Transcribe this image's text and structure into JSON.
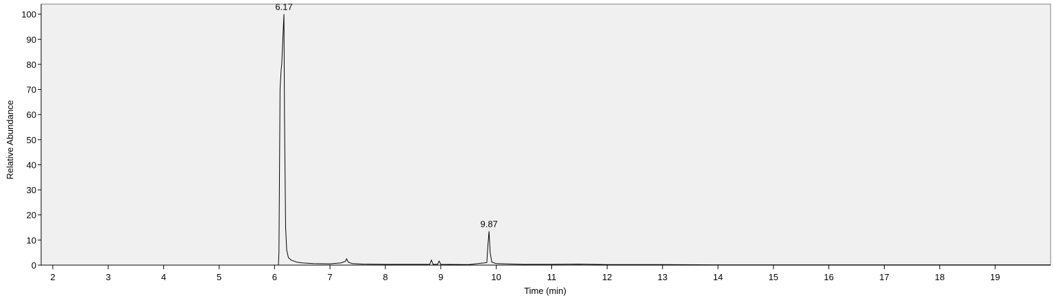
{
  "chart_data": {
    "type": "line",
    "xlabel": "Time (min)",
    "ylabel": "Relative Abundance",
    "xlim": [
      1.79,
      20.0
    ],
    "ylim": [
      0,
      104
    ],
    "xticks": [
      2,
      3,
      4,
      5,
      6,
      7,
      8,
      9,
      10,
      11,
      12,
      13,
      14,
      15,
      16,
      17,
      18,
      19
    ],
    "yticks": [
      0,
      10,
      20,
      30,
      40,
      50,
      60,
      70,
      80,
      90,
      100
    ],
    "x": [
      1.79,
      6.0,
      6.07,
      6.08,
      6.1,
      6.12,
      6.13,
      6.15,
      6.17,
      6.18,
      6.2,
      6.22,
      6.25,
      6.3,
      6.4,
      6.5,
      6.7,
      7.0,
      7.2,
      7.28,
      7.3,
      7.33,
      7.4,
      7.6,
      8.0,
      8.5,
      8.8,
      8.83,
      8.86,
      8.94,
      8.97,
      9.0,
      9.5,
      9.83,
      9.85,
      9.87,
      9.89,
      9.92,
      10.0,
      10.5,
      11.0,
      11.5,
      12.0,
      13.0,
      14.0,
      16.0,
      18.0,
      20.0
    ],
    "series": [
      {
        "color": "#000000",
        "values": [
          0,
          0,
          0,
          5,
          70,
          78,
          80,
          90,
          100,
          60,
          15,
          6,
          3,
          2,
          1.2,
          0.9,
          0.6,
          0.5,
          0.9,
          1.5,
          2.5,
          1.2,
          0.6,
          0.4,
          0.3,
          0.3,
          0.3,
          2,
          0.3,
          0.3,
          1.6,
          0.3,
          0.2,
          1,
          8,
          13.5,
          5,
          1.2,
          0.6,
          0.3,
          0.3,
          0.4,
          0.2,
          0.2,
          0.1,
          0.1,
          0.1,
          0.1
        ]
      }
    ],
    "annotations": [
      {
        "text": "6.17",
        "x": 6.17,
        "y": 100
      },
      {
        "text": "9.87",
        "x": 9.87,
        "y": 13.5
      }
    ]
  }
}
